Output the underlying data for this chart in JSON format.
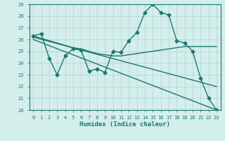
{
  "xlabel": "Humidex (Indice chaleur)",
  "xlim": [
    -0.5,
    23.5
  ],
  "ylim": [
    20,
    29
  ],
  "xticks": [
    0,
    1,
    2,
    3,
    4,
    5,
    6,
    7,
    8,
    9,
    10,
    11,
    12,
    13,
    14,
    15,
    16,
    17,
    18,
    19,
    20,
    21,
    22,
    23
  ],
  "yticks": [
    20,
    21,
    22,
    23,
    24,
    25,
    26,
    27,
    28,
    29
  ],
  "background_color": "#d4eeec",
  "grid_color": "#aed4d0",
  "line_color": "#1a7870",
  "lines": [
    {
      "x": [
        0,
        1,
        2,
        3,
        4,
        5,
        6,
        7,
        8,
        9,
        10,
        11,
        12,
        13,
        14,
        15,
        16,
        17,
        18,
        19,
        20,
        21,
        22,
        23
      ],
      "y": [
        26.3,
        26.5,
        24.4,
        23.0,
        24.6,
        25.2,
        25.1,
        23.3,
        23.5,
        23.2,
        25.0,
        24.9,
        25.9,
        26.6,
        28.3,
        29.0,
        28.3,
        28.1,
        25.9,
        25.7,
        25.0,
        22.7,
        21.0,
        20.0
      ],
      "marker": "D",
      "marker_size": 2.5,
      "lw": 1.0
    },
    {
      "x": [
        0,
        1,
        2,
        3,
        4,
        5,
        6,
        7,
        8,
        9,
        10,
        11,
        12,
        13,
        14,
        15,
        16,
        17,
        18,
        19,
        20,
        21,
        22,
        23
      ],
      "y": [
        26.3,
        26.1,
        25.9,
        25.7,
        25.5,
        25.3,
        25.2,
        25.0,
        24.8,
        24.7,
        24.6,
        24.6,
        24.7,
        24.8,
        24.9,
        25.0,
        25.1,
        25.2,
        25.3,
        25.4,
        25.4,
        25.4,
        25.4,
        25.4
      ],
      "marker": null,
      "lw": 1.0
    },
    {
      "x": [
        0,
        23
      ],
      "y": [
        26.2,
        22.0
      ],
      "marker": null,
      "lw": 1.0
    },
    {
      "x": [
        0,
        23
      ],
      "y": [
        26.0,
        20.0
      ],
      "marker": null,
      "lw": 1.0
    }
  ]
}
